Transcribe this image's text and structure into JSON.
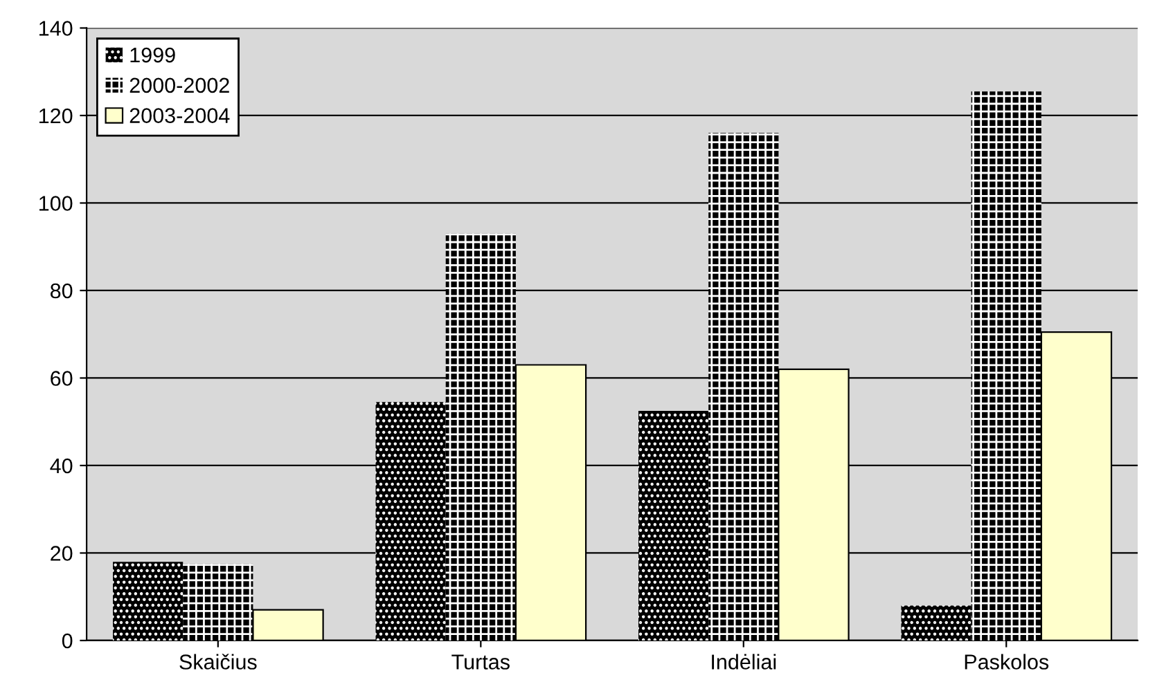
{
  "chart_data": {
    "type": "bar",
    "categories": [
      "Skaičius",
      "Turtas",
      "Indėliai",
      "Paskolos"
    ],
    "series": [
      {
        "name": "1999",
        "color": "#000000",
        "values": [
          18,
          54.5,
          52.5,
          8
        ]
      },
      {
        "name": "2000-2002",
        "color": "#000000",
        "values": [
          17.5,
          93,
          116,
          125.5
        ]
      },
      {
        "name": "2003-2004",
        "color": "#ffffcc",
        "values": [
          7,
          63,
          62,
          70.5
        ]
      }
    ],
    "ylim": [
      0,
      140
    ],
    "yticks": [
      0,
      20,
      40,
      60,
      80,
      100,
      120,
      140
    ],
    "grid": "y",
    "legend": "top left"
  }
}
